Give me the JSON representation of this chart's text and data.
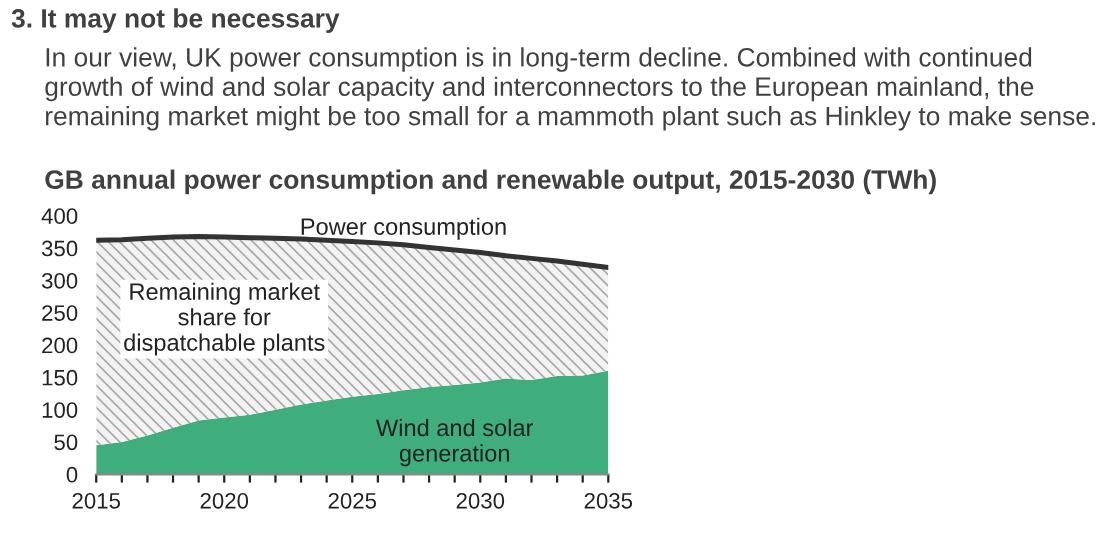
{
  "chart_data": {
    "type": "area",
    "stacked": true,
    "title": "GB annual power consumption and renewable output, 2015-2030 (TWh)",
    "annotations": [
      "3. It may not be necessary",
      "In our view, UK power consumption is in long-term decline. Combined with continued growth of wind and solar capacity and interconnectors to the European mainland, the remaining market might be too small for a mammoth plant such as Hinkley to make sense.",
      {
        "text": "Power consumption",
        "x": 2027,
        "y": 355
      }
    ],
    "x": [
      2015,
      2016,
      2017,
      2018,
      2019,
      2020,
      2021,
      2022,
      2023,
      2024,
      2025,
      2026,
      2027,
      2028,
      2029,
      2030,
      2031,
      2032,
      2033,
      2034,
      2035
    ],
    "series": [
      {
        "name": "Wind and solar\ngeneration",
        "color": "#3fae7c",
        "values": [
          45,
          50,
          60,
          72,
          83,
          88,
          92,
          100,
          108,
          114,
          120,
          124,
          130,
          135,
          138,
          142,
          148,
          146,
          152,
          153,
          160
        ]
      },
      {
        "name": "Remaining market\nshare for\ndispatchable plants",
        "color": "#f2f2f2",
        "values": [
          317,
          313,
          305,
          295,
          285,
          279,
          274,
          265,
          256,
          248,
          240,
          234,
          225,
          216,
          209,
          201,
          190,
          188,
          178,
          172,
          160
        ]
      }
    ],
    "xlim": [
      2015,
      2035
    ],
    "xticks": [
      2015,
      {
        "value": 2016,
        "label": null
      },
      {
        "value": 2017,
        "label": null
      },
      {
        "value": 2018,
        "label": null
      },
      {
        "value": 2019,
        "label": null
      },
      2020,
      {
        "value": 2021,
        "label": null
      },
      {
        "value": 2022,
        "label": null
      },
      {
        "value": 2023,
        "label": null
      },
      {
        "value": 2024,
        "label": null
      },
      2025,
      {
        "value": 2026,
        "label": null
      },
      {
        "value": 2027,
        "label": null
      },
      {
        "value": 2028,
        "label": null
      },
      {
        "value": 2029,
        "label": null
      },
      2030,
      {
        "value": 2031,
        "label": null
      },
      {
        "value": 2032,
        "label": null
      },
      {
        "value": 2033,
        "label": null
      },
      {
        "value": 2034,
        "label": null
      },
      2035
    ],
    "ylim": [
      0,
      400
    ],
    "yticks": [
      0,
      50,
      100,
      150,
      200,
      250,
      300,
      350,
      400
    ],
    "grid": false,
    "legend": false
  }
}
